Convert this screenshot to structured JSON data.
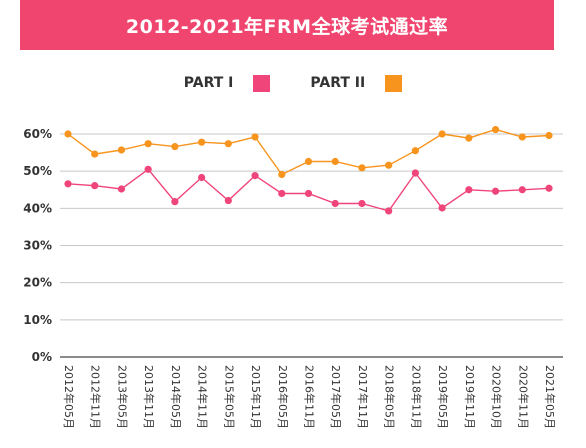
{
  "chart_data": {
    "type": "line",
    "title": "2012-2021年FRM全球考试通过率",
    "categories": [
      "2012年05月",
      "2012年11月",
      "2013年05月",
      "2013年11月",
      "2014年05月",
      "2014年11月",
      "2015年05月",
      "2015年11月",
      "2016年05月",
      "2016年11月",
      "2017年05月",
      "2017年11月",
      "2018年05月",
      "2018年11月",
      "2019年05月",
      "2019年11月",
      "2020年10月",
      "2020年11月",
      "2021年05月"
    ],
    "series": [
      {
        "name": "PART I",
        "color": "#f0457a",
        "values": [
          46.6,
          46.1,
          45.2,
          50.5,
          41.8,
          48.3,
          42.1,
          48.8,
          44.0,
          44.0,
          41.3,
          41.3,
          39.3,
          49.5,
          40.1,
          45.0,
          44.6,
          45.0,
          45.4
        ]
      },
      {
        "name": "PART II",
        "color": "#f7941d",
        "values": [
          60.0,
          54.6,
          55.7,
          57.4,
          56.6,
          57.8,
          57.4,
          59.2,
          49.1,
          52.6,
          52.6,
          50.9,
          51.6,
          55.5,
          60.0,
          58.9,
          61.2,
          59.2,
          59.6
        ]
      }
    ],
    "y_ticks": [
      "0%",
      "10%",
      "20%",
      "30%",
      "40%",
      "50%",
      "60%"
    ],
    "ylim": [
      0,
      60
    ],
    "grid": true,
    "legend_position": "top-center"
  }
}
